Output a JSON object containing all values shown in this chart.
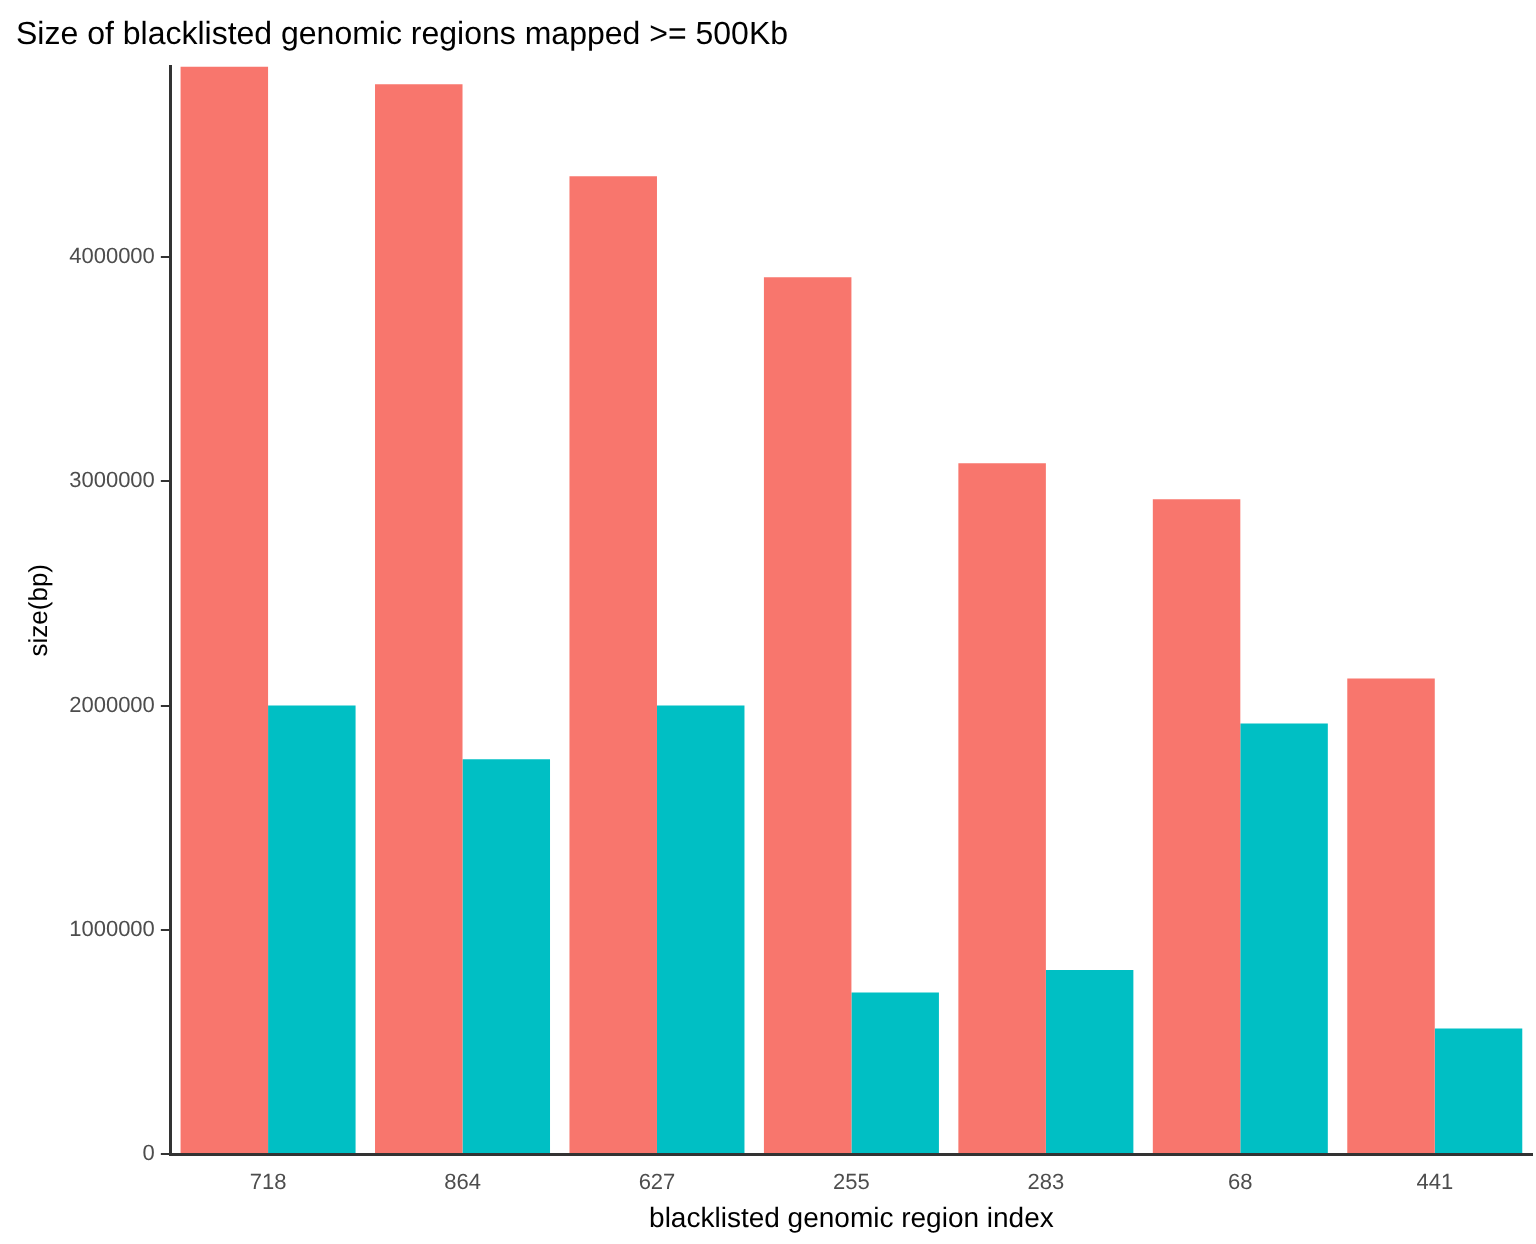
{
  "chart_data": {
    "type": "bar",
    "title": "Size of blacklisted genomic regions mapped >= 500Kb",
    "xlabel": "blacklisted genomic region index",
    "ylabel": "size(bp)",
    "categories": [
      "718",
      "864",
      "627",
      "255",
      "283",
      "68",
      "441"
    ],
    "series": [
      {
        "color": "#f8766d",
        "values": [
          4850000,
          4770000,
          4360000,
          3910000,
          3080000,
          2920000,
          2120000
        ]
      },
      {
        "color": "#00bfc4",
        "values": [
          2000000,
          1760000,
          2000000,
          720000,
          820000,
          1920000,
          560000
        ]
      }
    ],
    "ylim": [
      0,
      4850000
    ],
    "yticks": [
      0,
      1000000,
      2000000,
      3000000,
      4000000
    ],
    "grid": false,
    "legend": false
  }
}
